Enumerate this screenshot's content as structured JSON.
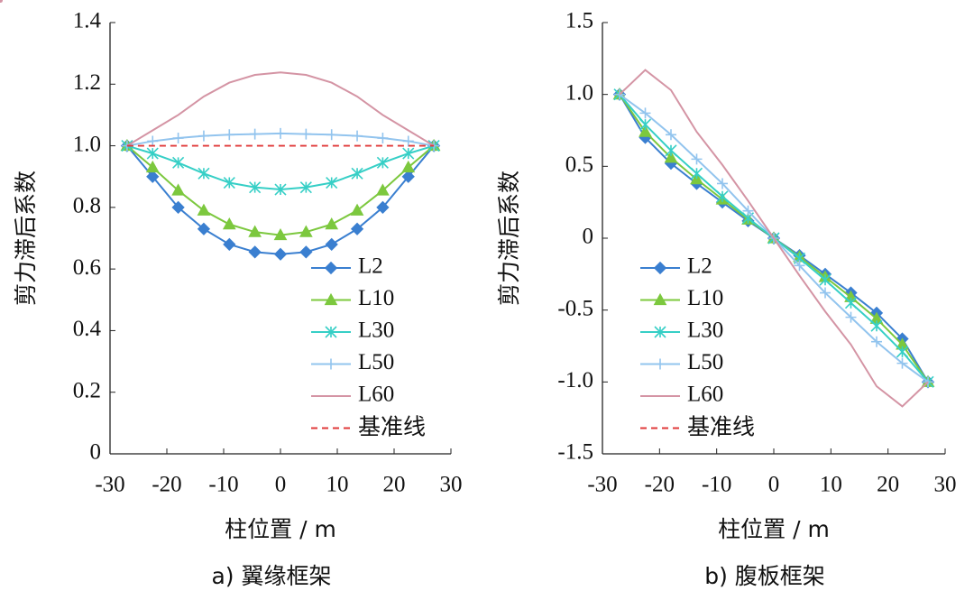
{
  "chart_data": [
    {
      "type": "line",
      "caption": "a) 翼缘框架",
      "xlabel": "柱位置 / m",
      "ylabel": "剪力滞后系数",
      "x": [
        -27,
        -22.5,
        -18,
        -13.5,
        -9,
        -4.5,
        0,
        4.5,
        9,
        13.5,
        18,
        22.5,
        27
      ],
      "xlim": [
        -30,
        30
      ],
      "xticks": [
        -30,
        -20,
        -10,
        0,
        10,
        20,
        30
      ],
      "ylim": [
        0,
        1.4
      ],
      "yticks": [
        0,
        0.2,
        0.4,
        0.6,
        0.8,
        {
          "value": 1,
          "label": "1.0"
        },
        1.2,
        1.4
      ],
      "legend": "lower right",
      "series": [
        {
          "name": "L2",
          "color": "#3a7fd0",
          "marker": "diamond",
          "values": [
            1.0,
            0.9,
            0.8,
            0.73,
            0.68,
            0.655,
            0.648,
            0.655,
            0.68,
            0.73,
            0.8,
            0.9,
            1.0
          ]
        },
        {
          "name": "L10",
          "color": "#7cc83e",
          "marker": "triangle",
          "values": [
            1.0,
            0.93,
            0.855,
            0.79,
            0.745,
            0.72,
            0.71,
            0.72,
            0.745,
            0.79,
            0.855,
            0.93,
            1.0
          ]
        },
        {
          "name": "L30",
          "color": "#36cfc6",
          "marker": "star",
          "values": [
            1.0,
            0.975,
            0.945,
            0.91,
            0.88,
            0.865,
            0.858,
            0.865,
            0.88,
            0.91,
            0.945,
            0.975,
            1.0
          ]
        },
        {
          "name": "L50",
          "color": "#92c4ee",
          "marker": "plus",
          "values": [
            1.0,
            1.015,
            1.025,
            1.032,
            1.036,
            1.038,
            1.04,
            1.038,
            1.036,
            1.032,
            1.025,
            1.015,
            1.0
          ]
        },
        {
          "name": "L60",
          "color": "#d494a4",
          "marker": "dot",
          "values": [
            1.0,
            1.05,
            1.1,
            1.16,
            1.205,
            1.23,
            1.238,
            1.23,
            1.205,
            1.16,
            1.1,
            1.05,
            1.0
          ]
        },
        {
          "name": "基准线",
          "color": "#e03a3a",
          "marker": "none",
          "dashed": true,
          "values": [
            1.0,
            1.0,
            1.0,
            1.0,
            1.0,
            1.0,
            1.0,
            1.0,
            1.0,
            1.0,
            1.0,
            1.0,
            1.0
          ]
        }
      ]
    },
    {
      "type": "line",
      "caption": "b) 腹板框架",
      "xlabel": "柱位置 / m",
      "ylabel": "剪力滞后系数",
      "x": [
        -27,
        -22.5,
        -18,
        -13.5,
        -9,
        -4.5,
        0,
        4.5,
        9,
        13.5,
        18,
        22.5,
        27
      ],
      "xlim": [
        -30,
        30
      ],
      "xticks": [
        -30,
        -20,
        -10,
        0,
        10,
        20,
        30
      ],
      "ylim": [
        -1.5,
        1.5
      ],
      "yticks": [
        -1.5,
        {
          "value": -1,
          "label": "-1.0"
        },
        -0.5,
        0,
        0.5,
        {
          "value": 1,
          "label": "1.0"
        },
        1.5
      ],
      "legend": "lower left",
      "series": [
        {
          "name": "L2",
          "color": "#3a7fd0",
          "marker": "diamond",
          "values": [
            1.0,
            0.7,
            0.52,
            0.38,
            0.25,
            0.12,
            0,
            -0.12,
            -0.25,
            -0.38,
            -0.52,
            -0.7,
            -1.0
          ]
        },
        {
          "name": "L10",
          "color": "#7cc83e",
          "marker": "triangle",
          "values": [
            1.0,
            0.74,
            0.56,
            0.41,
            0.27,
            0.13,
            0,
            -0.13,
            -0.27,
            -0.41,
            -0.56,
            -0.74,
            -1.0
          ]
        },
        {
          "name": "L30",
          "color": "#36cfc6",
          "marker": "star",
          "values": [
            1.0,
            0.79,
            0.61,
            0.45,
            0.29,
            0.14,
            0,
            -0.14,
            -0.29,
            -0.45,
            -0.61,
            -0.79,
            -1.0
          ]
        },
        {
          "name": "L50",
          "color": "#92c4ee",
          "marker": "plus",
          "values": [
            1.0,
            0.87,
            0.72,
            0.55,
            0.38,
            0.19,
            0,
            -0.19,
            -0.38,
            -0.55,
            -0.72,
            -0.87,
            -1.0
          ]
        },
        {
          "name": "L60",
          "color": "#d494a4",
          "marker": "dot",
          "values": [
            1.0,
            1.17,
            1.03,
            0.74,
            0.51,
            0.26,
            0,
            -0.26,
            -0.51,
            -0.74,
            -1.03,
            -1.17,
            -1.0
          ]
        },
        {
          "name": "基准线",
          "color": "#e03a3a",
          "marker": "none",
          "dashed": true,
          "values": [
            null,
            null,
            null,
            null,
            null,
            null,
            null,
            null,
            null,
            null,
            null,
            null,
            null
          ]
        }
      ]
    }
  ]
}
